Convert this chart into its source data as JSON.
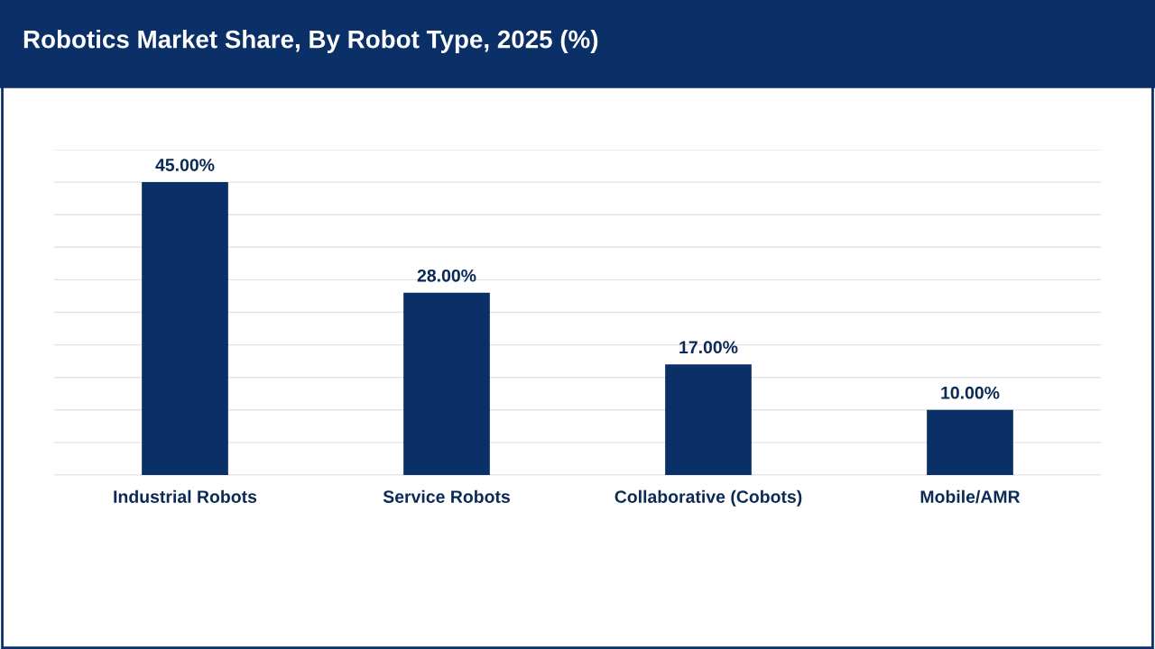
{
  "chart_data": {
    "type": "bar",
    "title": "Robotics Market Share, By Robot Type, 2025 (%)",
    "categories": [
      "Industrial Robots",
      "Service Robots",
      "Collaborative (Cobots)",
      "Mobile/AMR"
    ],
    "values": [
      45,
      28,
      17,
      10
    ],
    "value_labels": [
      "45.00%",
      "28.00%",
      "17.00%",
      "10.00%"
    ],
    "color": "#0b3068",
    "ylim": [
      0,
      50
    ],
    "yticks": [
      {
        "value": 0,
        "label": null
      },
      {
        "value": 5,
        "label": null
      },
      {
        "value": 10,
        "label": null
      },
      {
        "value": 15,
        "label": null
      },
      {
        "value": 20,
        "label": null
      },
      {
        "value": 25,
        "label": null
      },
      {
        "value": 30,
        "label": null
      },
      {
        "value": 35,
        "label": null
      },
      {
        "value": 40,
        "label": null
      },
      {
        "value": 45,
        "label": null
      },
      {
        "value": 50,
        "label": null
      }
    ],
    "tick_labels": "x",
    "grid": "y"
  }
}
